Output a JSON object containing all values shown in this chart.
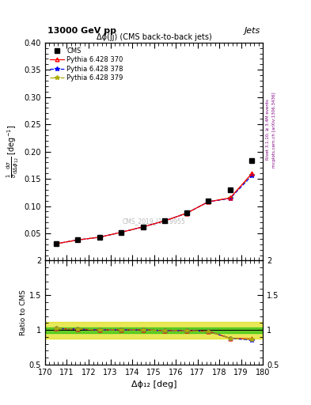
{
  "title_top": "13000 GeV pp",
  "title_right": "Jets",
  "plot_title": "Δϕ(jj) (CMS back-to-back jets)",
  "xlabel": "Δϕ₁₂ [deg]",
  "ylabel_main": "½ dσ / dΔϕ₁₂ [deg⁻¹]",
  "ylabel_ratio": "Ratio to CMS",
  "right_label": "Rivet 3.1.10; ≥ 3.4M events",
  "right_label2": "mcplots.cern.ch [arXiv:1306.3436]",
  "watermark": "CMS_2019_I1719955",
  "xlim": [
    170,
    180
  ],
  "ylim_main": [
    0.0,
    0.4
  ],
  "ylim_ratio": [
    0.5,
    2.0
  ],
  "yticks_main": [
    0.05,
    0.1,
    0.15,
    0.2,
    0.25,
    0.3,
    0.35,
    0.4
  ],
  "yticks_ratio": [
    0.5,
    1.0,
    1.5,
    2.0
  ],
  "xticks": [
    170,
    171,
    172,
    173,
    174,
    175,
    176,
    177,
    178,
    179,
    180
  ],
  "cms_x": [
    170.5,
    171.5,
    172.5,
    173.5,
    174.5,
    175.5,
    176.5,
    177.5,
    178.5,
    179.5
  ],
  "cms_y": [
    0.031,
    0.038,
    0.043,
    0.052,
    0.062,
    0.073,
    0.088,
    0.11,
    0.13,
    0.183
  ],
  "py370_x": [
    170.5,
    171.5,
    172.5,
    173.5,
    174.5,
    175.5,
    176.5,
    177.5,
    178.5,
    179.5
  ],
  "py370_y": [
    0.031,
    0.038,
    0.043,
    0.052,
    0.062,
    0.073,
    0.087,
    0.108,
    0.115,
    0.16
  ],
  "py378_x": [
    170.5,
    171.5,
    172.5,
    173.5,
    174.5,
    175.5,
    176.5,
    177.5,
    178.5,
    179.5
  ],
  "py378_y": [
    0.031,
    0.038,
    0.043,
    0.052,
    0.062,
    0.073,
    0.087,
    0.108,
    0.114,
    0.156
  ],
  "py379_x": [
    170.5,
    171.5,
    172.5,
    173.5,
    174.5,
    175.5,
    176.5,
    177.5,
    178.5,
    179.5
  ],
  "py379_y": [
    0.031,
    0.038,
    0.043,
    0.052,
    0.062,
    0.073,
    0.087,
    0.108,
    0.115,
    0.158
  ],
  "ratio370_y": [
    1.02,
    1.01,
    1.0,
    1.0,
    1.0,
    0.99,
    0.99,
    0.98,
    0.88,
    0.87
  ],
  "ratio378_y": [
    1.02,
    1.01,
    1.0,
    1.0,
    1.0,
    0.99,
    0.99,
    0.98,
    0.88,
    0.85
  ],
  "ratio379_y": [
    1.02,
    1.01,
    1.0,
    1.0,
    1.0,
    0.99,
    0.99,
    0.98,
    0.88,
    0.86
  ],
  "color_cms": "#000000",
  "color_py370": "#ff0000",
  "color_py378": "#0000ff",
  "color_py379": "#aaaa00",
  "band_green": "#00bb00",
  "band_yellow": "#dddd00",
  "band_green_alpha": 0.55,
  "band_yellow_alpha": 0.65,
  "band_green_low": 0.96,
  "band_green_high": 1.04,
  "band_yellow_low": 0.88,
  "band_yellow_high": 1.12
}
